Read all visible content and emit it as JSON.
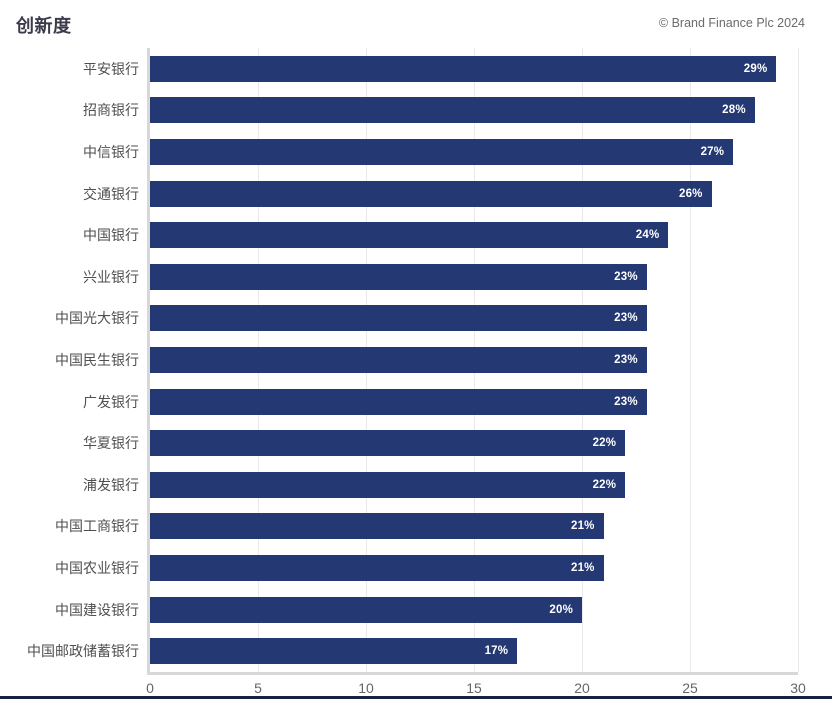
{
  "header": {
    "title": "创新度",
    "copyright": "© Brand Finance Plc 2024"
  },
  "colors": {
    "bar": "#243873",
    "title_text": "#3B3B4B",
    "category_text": "#4F4F4F",
    "tick_text": "#666666",
    "value_text": "#FFFFFF",
    "gridline": "#E9E9E9",
    "axis_line": "#D8D8D8",
    "footer_line": "#18223F"
  },
  "chart_data": {
    "type": "bar",
    "orientation": "horizontal",
    "title": "创新度",
    "xlabel": "",
    "ylabel": "",
    "categories": [
      "平安银行",
      "招商银行",
      "中信银行",
      "交通银行",
      "中国银行",
      "兴业银行",
      "中国光大银行",
      "中国民生银行",
      "广发银行",
      "华夏银行",
      "浦发银行",
      "中国工商银行",
      "中国农业银行",
      "中国建设银行",
      "中国邮政储蓄银行"
    ],
    "values": [
      29,
      28,
      27,
      26,
      24,
      23,
      23,
      23,
      23,
      22,
      22,
      21,
      21,
      20,
      17
    ],
    "value_labels": [
      "29%",
      "28%",
      "27%",
      "26%",
      "24%",
      "23%",
      "23%",
      "23%",
      "23%",
      "22%",
      "22%",
      "21%",
      "21%",
      "20%",
      "17%"
    ],
    "xlim": [
      0,
      30
    ],
    "xticks": [
      0,
      5,
      10,
      15,
      20,
      25,
      30
    ],
    "grid": true,
    "legend": false
  }
}
